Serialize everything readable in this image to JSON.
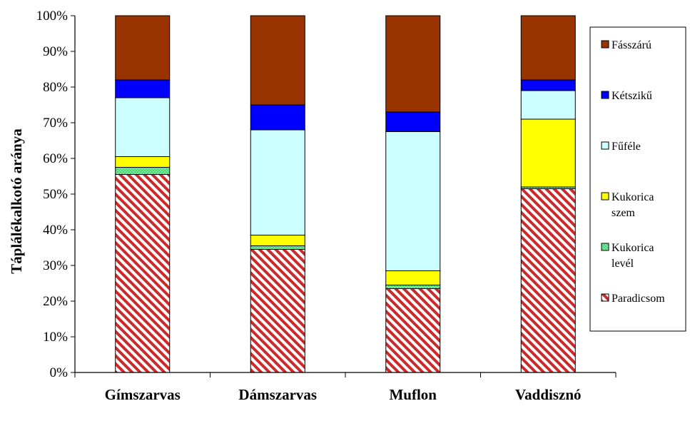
{
  "chart_data": {
    "type": "bar",
    "stacked": true,
    "percent_stacked": true,
    "ylabel": "Táplálékalkotó aránya",
    "xlabel": "",
    "ylim": [
      0,
      100
    ],
    "yticks": [
      "0%",
      "10%",
      "20%",
      "30%",
      "40%",
      "50%",
      "60%",
      "70%",
      "80%",
      "90%",
      "100%"
    ],
    "categories": [
      "Gímszarvas",
      "Dámszarvas",
      "Muflon",
      "Vaddisznó"
    ],
    "series": [
      {
        "name": "Paradicsom",
        "color": "#cc3333",
        "pattern": "red-diagonal-hatch",
        "values": [
          55.5,
          34.5,
          23.5,
          51.5
        ]
      },
      {
        "name": "Kukorica levél",
        "color": "#66ee88",
        "pattern": "green-dotted",
        "values": [
          2.0,
          1.0,
          1.0,
          0.5
        ]
      },
      {
        "name": "Kukorica szem",
        "color": "#ffff00",
        "values": [
          3.0,
          3.0,
          4.0,
          19.0
        ]
      },
      {
        "name": "Fűféle",
        "color": "#ccffff",
        "values": [
          16.5,
          29.5,
          39.0,
          8.0
        ]
      },
      {
        "name": "Kétszikű",
        "color": "#0000ff",
        "values": [
          5.0,
          7.0,
          5.5,
          3.0
        ]
      },
      {
        "name": "Fásszárú",
        "color": "#993300",
        "values": [
          18.0,
          25.0,
          27.0,
          18.0
        ]
      }
    ],
    "legend_order": [
      "Fásszárú",
      "Kétszikű",
      "Fűféle",
      "Kukorica szem",
      "Kukorica levél",
      "Paradicsom"
    ],
    "legend_lines": {
      "Kukorica szem": [
        "Kukorica",
        "szem"
      ],
      "Kukorica levél": [
        "Kukorica",
        "levél"
      ]
    },
    "legend_position": "right",
    "grid": false
  }
}
